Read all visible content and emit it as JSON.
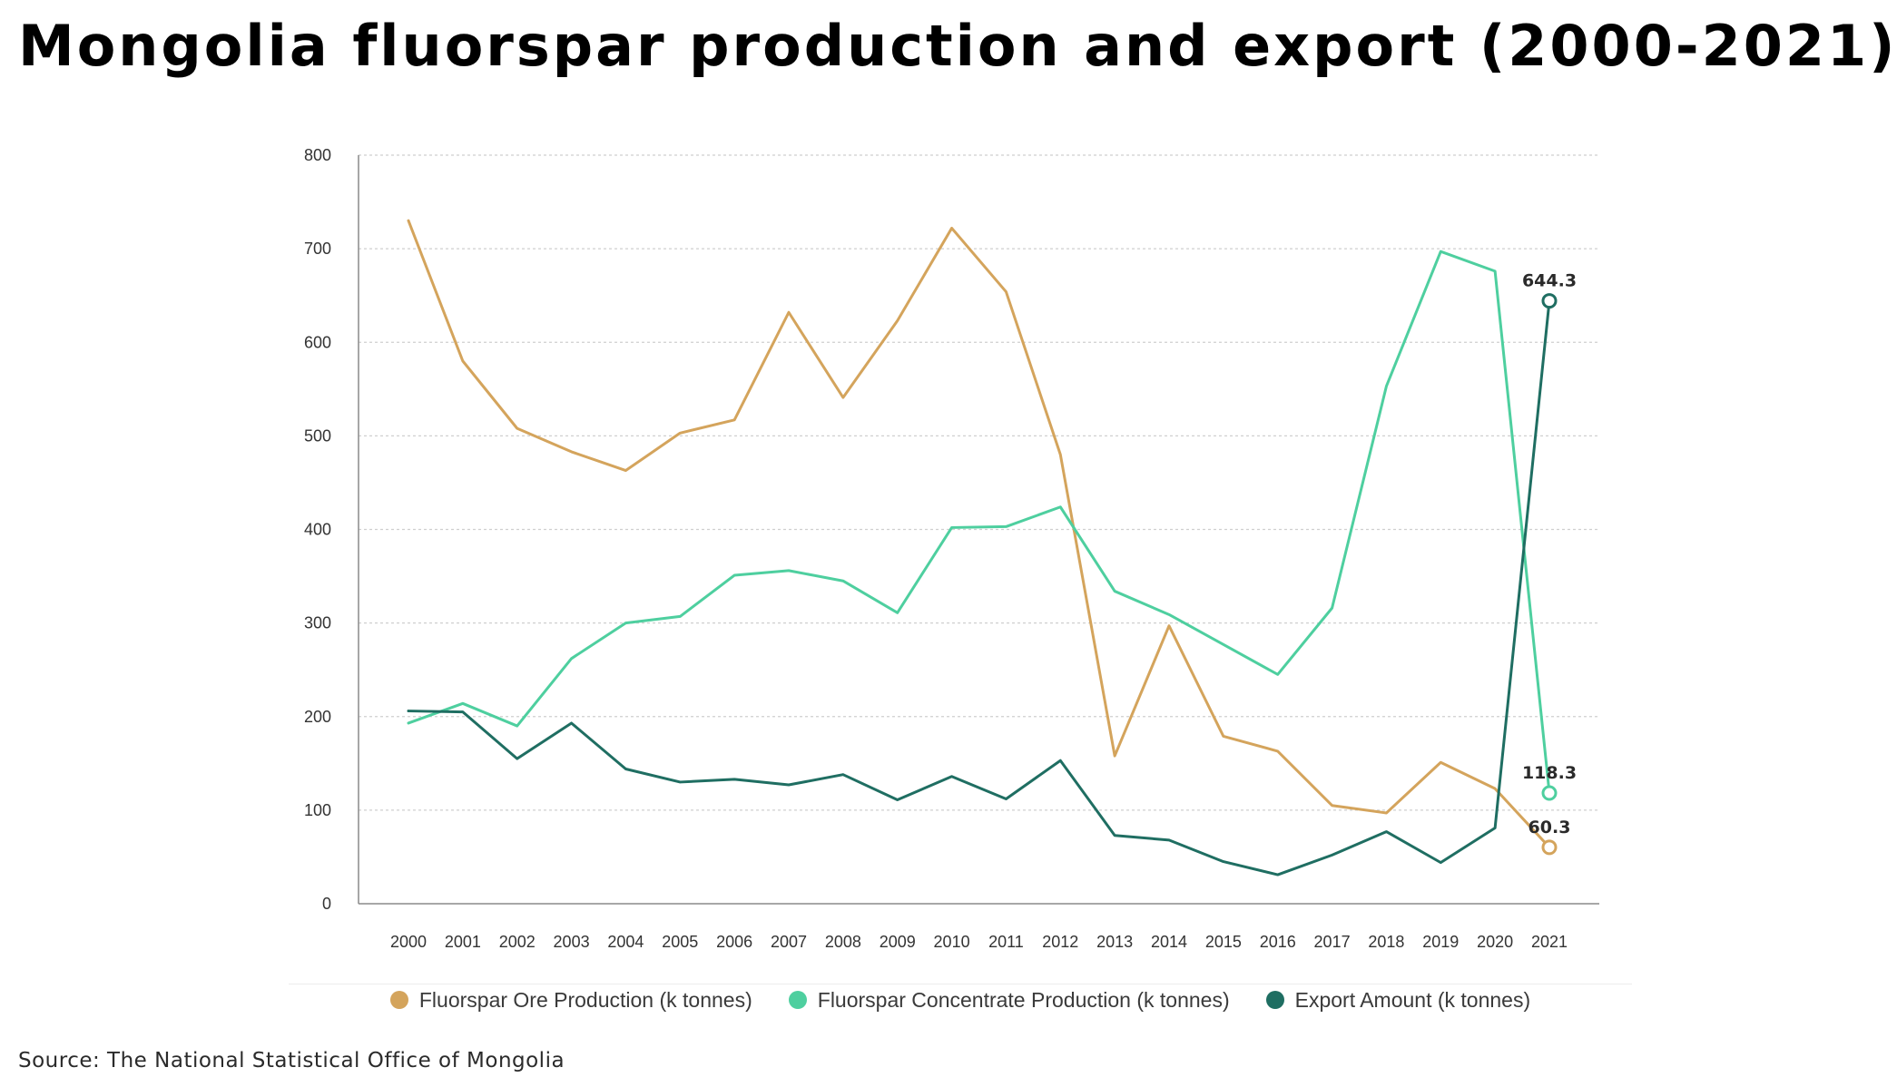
{
  "title": "Mongolia fluorspar production and export (2000-2021)",
  "source": "Source: The National Statistical Office of Mongolia",
  "colors": {
    "ore": "#d4a45c",
    "concentrate": "#4ecf9f",
    "export": "#1f6e62",
    "grid": "#cfcfcf",
    "axis": "#8a8a8a"
  },
  "chart_data": {
    "type": "line",
    "title": "Mongolia fluorspar production and export (2000-2021)",
    "x": [
      "2000",
      "2001",
      "2002",
      "2003",
      "2004",
      "2005",
      "2006",
      "2007",
      "2008",
      "2009",
      "2010",
      "2011",
      "2012",
      "2013",
      "2014",
      "2015",
      "2016",
      "2017",
      "2018",
      "2019",
      "2020",
      "2021"
    ],
    "ylim": [
      0,
      800
    ],
    "yticks": [
      "0",
      "100",
      "200",
      "300",
      "400",
      "500",
      "600",
      "700",
      "800"
    ],
    "grid": true,
    "legend_position": "bottom",
    "series": [
      {
        "key": "ore",
        "name": "Fluorspar Ore Production (k tonnes)",
        "values": [
          730,
          580,
          508,
          483,
          463,
          503,
          517,
          632,
          541,
          623,
          722,
          654,
          480,
          158,
          297,
          179,
          163,
          105,
          97,
          151,
          123,
          60.3
        ]
      },
      {
        "key": "concentrate",
        "name": "Fluorspar Concentrate Production (k tonnes)",
        "values": [
          193,
          214,
          190,
          262,
          300,
          307,
          351,
          356,
          345,
          311,
          402,
          403,
          424,
          334,
          309,
          277,
          245,
          316,
          553,
          697,
          676,
          118.3
        ]
      },
      {
        "key": "export",
        "name": "Export Amount (k tonnes)",
        "values": [
          206,
          205,
          155,
          193,
          144,
          130,
          133,
          127,
          138,
          111,
          136,
          112,
          153,
          73,
          68,
          45,
          31,
          52,
          77,
          44,
          81,
          644.3
        ]
      }
    ],
    "annotations": [
      {
        "series": "export",
        "x": "2021",
        "label": "644.3"
      },
      {
        "series": "concentrate",
        "x": "2021",
        "label": "118.3"
      },
      {
        "series": "ore",
        "x": "2021",
        "label": "60.3"
      }
    ]
  }
}
